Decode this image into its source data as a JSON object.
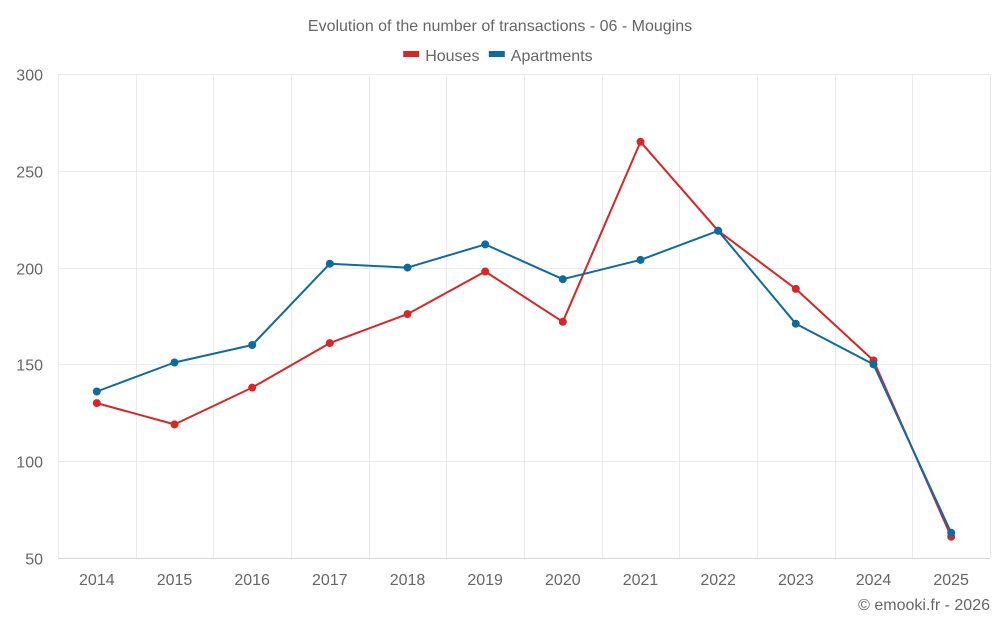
{
  "chart_data": {
    "type": "line",
    "title": "Evolution of the number of transactions - 06 - Mougins",
    "xlabel": "",
    "ylabel": "",
    "categories": [
      "2014",
      "2015",
      "2016",
      "2017",
      "2018",
      "2019",
      "2020",
      "2021",
      "2022",
      "2023",
      "2024",
      "2025"
    ],
    "series": [
      {
        "name": "Houses",
        "color": "#d62728",
        "values": [
          130,
          119,
          138,
          161,
          176,
          198,
          172,
          265,
          219,
          189,
          152,
          61
        ]
      },
      {
        "name": "Apartments",
        "color": "#0f6b9e",
        "values": [
          136,
          151,
          160,
          202,
          200,
          212,
          194,
          204,
          219,
          171,
          150,
          63
        ]
      }
    ],
    "ylim": [
      50,
      300
    ],
    "yticks": [
      "50",
      "100",
      "150",
      "200",
      "250",
      "300"
    ],
    "grid": true,
    "legend_position": "top-center",
    "credit": "© emooki.fr - 2026"
  }
}
